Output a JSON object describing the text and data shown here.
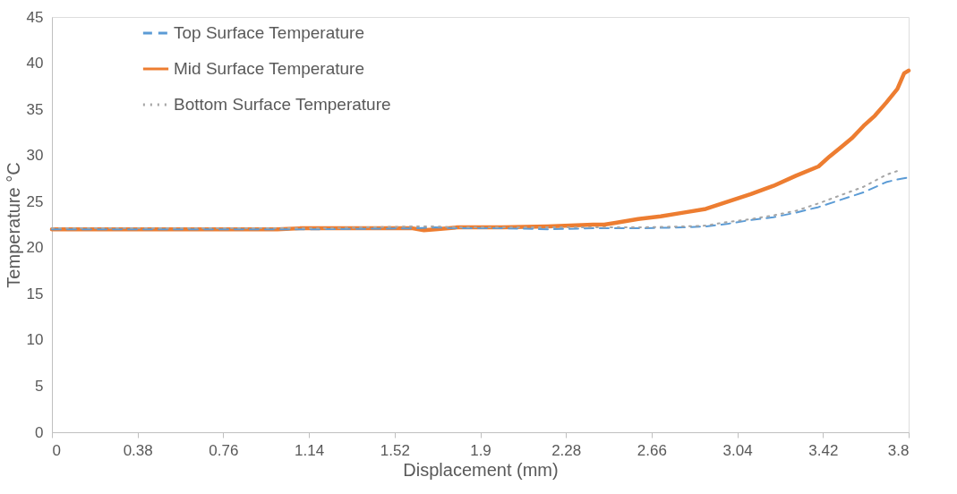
{
  "chart_data": {
    "type": "line",
    "xlabel": "Displacement (mm)",
    "ylabel": "Temperature °C",
    "xlim": [
      0,
      3.8
    ],
    "xticks": [
      0,
      0.38,
      0.76,
      1.14,
      1.52,
      1.9,
      2.28,
      2.66,
      3.04,
      3.42,
      3.8
    ],
    "ylim": [
      0,
      45
    ],
    "yticks": [
      0,
      5,
      10,
      15,
      20,
      25,
      30,
      35,
      40,
      45
    ],
    "grid": false,
    "legend": "top left",
    "marker": "none",
    "series": [
      {
        "name": "Top Surface Temperature",
        "color": "#5b9bd5",
        "line_style": "dashed",
        "x": [
          0,
          0.4,
          0.8,
          1.2,
          1.6,
          1.7,
          1.8,
          2.0,
          2.2,
          2.4,
          2.6,
          2.8,
          2.9,
          3.0,
          3.1,
          3.2,
          3.3,
          3.4,
          3.5,
          3.6,
          3.7,
          3.75,
          3.8
        ],
        "values": [
          22,
          22,
          22,
          22,
          22.1,
          22.2,
          22.1,
          22.1,
          22.0,
          22.1,
          22.1,
          22.2,
          22.3,
          22.6,
          23.0,
          23.3,
          23.8,
          24.4,
          25.2,
          26.0,
          27.1,
          27.4,
          27.6
        ]
      },
      {
        "name": "Mid Surface Temperature",
        "color": "#ed7d31",
        "line_style": "solid",
        "x": [
          0,
          0.2,
          0.4,
          0.6,
          0.8,
          1.0,
          1.1,
          1.3,
          1.5,
          1.6,
          1.65,
          1.7,
          1.8,
          2.0,
          2.2,
          2.4,
          2.45,
          2.5,
          2.6,
          2.7,
          2.8,
          2.9,
          3.0,
          3.1,
          3.2,
          3.3,
          3.4,
          3.45,
          3.5,
          3.55,
          3.6,
          3.65,
          3.7,
          3.75,
          3.78,
          3.8
        ],
        "values": [
          22,
          22,
          22,
          22,
          22,
          22,
          22.1,
          22.1,
          22.1,
          22.1,
          21.9,
          22.0,
          22.2,
          22.2,
          22.3,
          22.5,
          22.5,
          22.7,
          23.1,
          23.4,
          23.8,
          24.2,
          25.0,
          25.8,
          26.7,
          27.8,
          28.8,
          29.9,
          30.9,
          31.9,
          33.2,
          34.3,
          35.7,
          37.2,
          38.9,
          39.2
        ]
      },
      {
        "name": "Bottom Surface Temperature",
        "color": "#a5a5a5",
        "line_style": "dotted",
        "x": [
          0,
          0.4,
          0.8,
          1.2,
          1.6,
          1.7,
          1.8,
          2.0,
          2.2,
          2.4,
          2.6,
          2.8,
          2.9,
          3.0,
          3.1,
          3.2,
          3.3,
          3.4,
          3.5,
          3.6,
          3.7,
          3.76
        ],
        "values": [
          22.1,
          22.1,
          22.1,
          22.1,
          22.3,
          22.3,
          22.2,
          22.2,
          22.2,
          22.2,
          22.2,
          22.3,
          22.4,
          22.8,
          23.1,
          23.5,
          24.0,
          24.8,
          25.7,
          26.6,
          27.9,
          28.4
        ]
      }
    ]
  }
}
